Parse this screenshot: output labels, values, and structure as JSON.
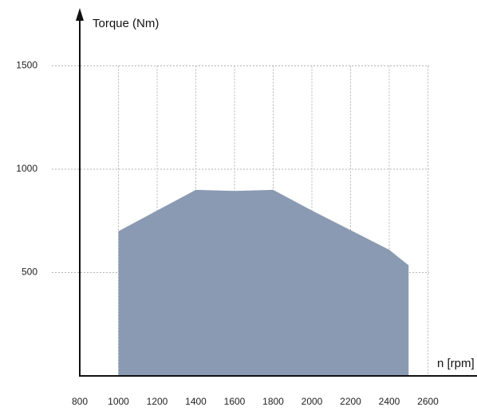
{
  "chart_data": {
    "type": "area",
    "title": "",
    "ylabel": "Torque (Nm)",
    "xlabel": "n [rpm]",
    "x_ticks": [
      800,
      1000,
      1200,
      1400,
      1600,
      1800,
      2000,
      2200,
      2400,
      2600
    ],
    "y_ticks": [
      500,
      1000,
      1500
    ],
    "xlim": [
      800,
      2600
    ],
    "ylim": [
      0,
      1500
    ],
    "grid": true,
    "area_color": "#8a9ab2",
    "series": [
      {
        "x": [
          1000,
          1200,
          1400,
          1600,
          1800,
          2000,
          2200,
          2400,
          2500
        ],
        "y": [
          700,
          800,
          900,
          895,
          900,
          800,
          705,
          610,
          535
        ]
      }
    ]
  }
}
